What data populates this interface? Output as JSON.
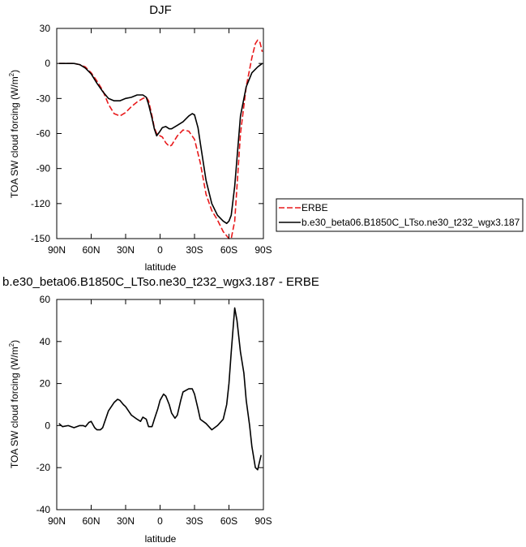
{
  "chart_data": [
    {
      "type": "line",
      "title": "DJF",
      "xlabel": "latitude",
      "ylabel": "TOA SW cloud forcing (W/m",
      "ylabel_sup": "2",
      "ylabel_tail": ")",
      "xlim": [
        90,
        -90
      ],
      "ylim": [
        -150,
        30
      ],
      "xticks": [
        90,
        60,
        30,
        0,
        -30,
        -60,
        -90
      ],
      "xtick_labels": [
        "90N",
        "60N",
        "30N",
        "0",
        "30S",
        "60S",
        "90S"
      ],
      "yticks": [
        30,
        0,
        -30,
        -60,
        -90,
        -120,
        -150
      ],
      "ytick_labels": [
        "30",
        "0",
        "-30",
        "-60",
        "-90",
        "-120",
        "-150"
      ],
      "legend_position": "right",
      "series": [
        {
          "name": "ERBE",
          "color": "#e8191b",
          "dash": "dashed",
          "x": [
            88,
            85,
            80,
            75,
            70,
            65,
            60,
            55,
            50,
            45,
            40,
            35,
            30,
            25,
            20,
            15,
            12,
            10,
            7,
            5,
            3,
            0,
            -2,
            -5,
            -8,
            -10,
            -15,
            -20,
            -25,
            -30,
            -35,
            -40,
            -45,
            -50,
            -55,
            -60,
            -62,
            -65,
            -70,
            -75,
            -80,
            -83,
            -85,
            -87,
            -89
          ],
          "y": [
            0,
            0,
            0,
            0,
            -1,
            -3,
            -8,
            -15,
            -23,
            -35,
            -43,
            -45,
            -42,
            -37,
            -33,
            -30,
            -29,
            -32,
            -45,
            -55,
            -60,
            -62,
            -63,
            -68,
            -71,
            -70,
            -62,
            -57,
            -58,
            -65,
            -85,
            -112,
            -126,
            -134,
            -144,
            -150,
            -150,
            -135,
            -60,
            -20,
            5,
            17,
            20,
            18,
            10
          ]
        },
        {
          "name": "b.e30_beta06.B1850C_LTso.ne30_t232_wgx3.187",
          "color": "#000000",
          "dash": "solid",
          "x": [
            88,
            85,
            80,
            75,
            70,
            65,
            60,
            55,
            50,
            45,
            40,
            35,
            30,
            25,
            20,
            15,
            12,
            10,
            7,
            5,
            3,
            0,
            -2,
            -5,
            -8,
            -10,
            -15,
            -20,
            -25,
            -28,
            -30,
            -33,
            -35,
            -40,
            -45,
            -50,
            -55,
            -58,
            -60,
            -62,
            -65,
            -70,
            -75,
            -80,
            -85,
            -89
          ],
          "y": [
            0,
            0,
            0,
            0,
            -1,
            -4,
            -9,
            -17,
            -24,
            -30,
            -32,
            -32,
            -30,
            -29,
            -27,
            -27,
            -29,
            -35,
            -47,
            -56,
            -62,
            -58,
            -55,
            -54,
            -56,
            -56,
            -53,
            -50,
            -45,
            -43,
            -44,
            -55,
            -68,
            -100,
            -120,
            -130,
            -135,
            -137,
            -135,
            -130,
            -105,
            -45,
            -20,
            -8,
            -3,
            0
          ]
        }
      ]
    },
    {
      "type": "line",
      "title": "b.e30_beta06.B1850C_LTso.ne30_t232_wgx3.187 - ERBE",
      "xlabel": "latitude",
      "ylabel": "TOA SW cloud forcing (W/m",
      "ylabel_sup": "2",
      "ylabel_tail": ")",
      "xlim": [
        90,
        -90
      ],
      "ylim": [
        -40,
        60
      ],
      "xticks": [
        90,
        60,
        30,
        0,
        -30,
        -60,
        -90
      ],
      "xtick_labels": [
        "90N",
        "60N",
        "30N",
        "0",
        "30S",
        "60S",
        "90S"
      ],
      "yticks": [
        60,
        40,
        20,
        0,
        -20,
        -40
      ],
      "ytick_labels": [
        "60",
        "40",
        "20",
        "0",
        "-20",
        "-40"
      ],
      "series": [
        {
          "color": "#000000",
          "dash": "solid",
          "x": [
            88,
            85,
            80,
            75,
            70,
            67,
            65,
            62,
            60,
            57,
            55,
            52,
            50,
            45,
            40,
            37,
            35,
            32,
            30,
            25,
            20,
            17,
            15,
            12,
            10,
            7,
            5,
            2,
            0,
            -3,
            -5,
            -8,
            -10,
            -13,
            -15,
            -18,
            -20,
            -25,
            -28,
            -30,
            -33,
            -35,
            -40,
            -45,
            -50,
            -55,
            -58,
            -60,
            -62,
            -65,
            -67,
            -70,
            -73,
            -75,
            -78,
            -80,
            -83,
            -85,
            -88
          ],
          "y": [
            1,
            -0.5,
            0,
            -1,
            0,
            0,
            -0.5,
            1.5,
            2,
            -1,
            -2,
            -2,
            -1,
            7,
            11,
            12.5,
            12,
            10,
            9,
            5,
            3,
            2,
            4,
            3,
            -0.5,
            -0.5,
            3,
            8,
            12,
            15,
            14,
            10,
            6,
            3.5,
            5,
            12,
            16,
            17.5,
            17.5,
            15,
            8,
            3,
            1,
            -2,
            0,
            3,
            10,
            20,
            35,
            56,
            50,
            35,
            25,
            12,
            0,
            -10,
            -20,
            -21,
            -14
          ]
        }
      ]
    }
  ]
}
